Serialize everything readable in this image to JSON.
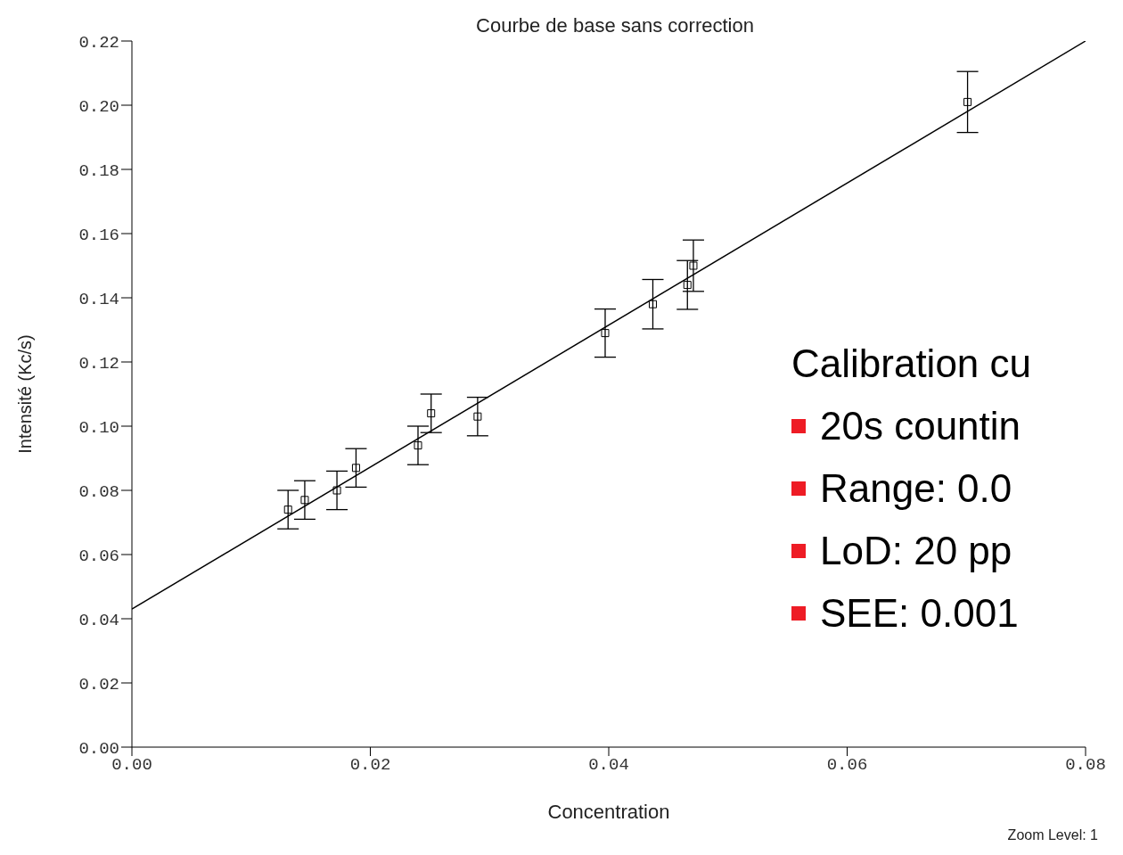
{
  "chart_data": {
    "type": "scatter",
    "title": "Courbe de base sans correction",
    "xlabel": "Concentration",
    "ylabel": "Intensité  (Kc/s)",
    "xlim": [
      0,
      0.08
    ],
    "ylim": [
      0,
      0.22
    ],
    "xticks": [
      {
        "value": 0,
        "label": "0.00"
      },
      {
        "value": 0.02,
        "label": "0.02"
      },
      {
        "value": 0.04,
        "label": "0.04"
      },
      {
        "value": 0.06,
        "label": "0.06"
      },
      {
        "value": 0.08,
        "label": "0.08"
      }
    ],
    "yticks": [
      {
        "value": 0,
        "label": "0.00"
      },
      {
        "value": 0.02,
        "label": "0.02"
      },
      {
        "value": 0.04,
        "label": "0.04"
      },
      {
        "value": 0.06,
        "label": "0.06"
      },
      {
        "value": 0.08,
        "label": "0.08"
      },
      {
        "value": 0.1,
        "label": "0.10"
      },
      {
        "value": 0.12,
        "label": "0.12"
      },
      {
        "value": 0.14,
        "label": "0.14"
      },
      {
        "value": 0.16,
        "label": "0.16"
      },
      {
        "value": 0.18,
        "label": "0.18"
      },
      {
        "value": 0.2,
        "label": "0.20"
      },
      {
        "value": 0.22,
        "label": "0.22"
      }
    ],
    "grid": false,
    "legend": false,
    "series": [
      {
        "marker": "square",
        "color": "#000000",
        "x": [
          0.0131,
          0.0145,
          0.0172,
          0.0188,
          0.024,
          0.0251,
          0.029,
          0.0397,
          0.0437,
          0.0466,
          0.0471,
          0.0701
        ],
        "values": [
          0.074,
          0.077,
          0.08,
          0.087,
          0.094,
          0.104,
          0.103,
          0.129,
          0.138,
          0.144,
          0.15,
          0.201
        ],
        "errors": [
          0.006,
          0.006,
          0.006,
          0.006,
          0.006,
          0.006,
          0.006,
          0.0075,
          0.0077,
          0.0076,
          0.008,
          0.0095
        ]
      },
      {
        "type": "line",
        "color": "#000000",
        "x": [
          0,
          0.08
        ],
        "values": [
          0.043,
          0.22
        ]
      }
    ],
    "annotations": [
      "Calibration cu",
      "20s countin",
      "Range: 0.0",
      "LoD: 20 pp",
      "SEE: 0.001",
      "Zoom Level: 1"
    ]
  }
}
